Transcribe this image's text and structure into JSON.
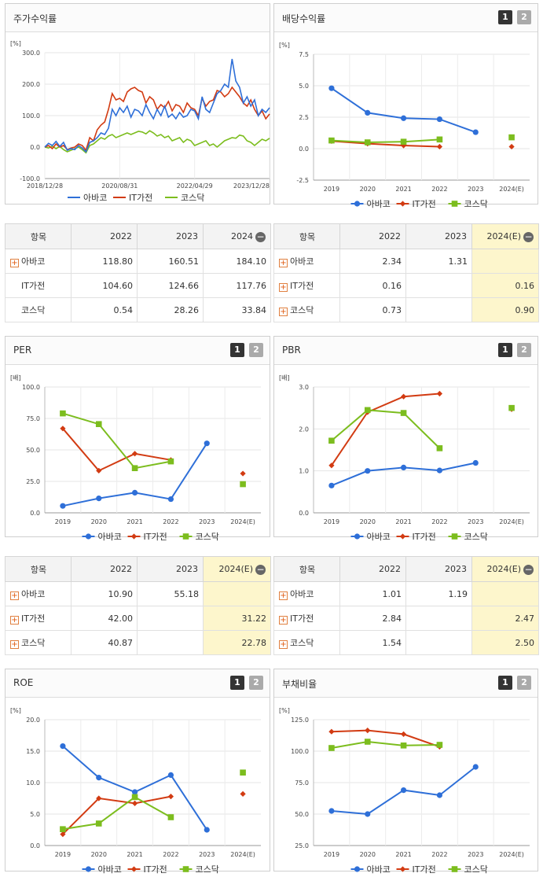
{
  "colors": {
    "abaco": "#2e6fd8",
    "it": "#d23b12",
    "kosdaq": "#7cbd1e"
  },
  "series_names": [
    "아바코",
    "IT가전",
    "코스닥"
  ],
  "icons": {
    "row_expand": "plus-icon",
    "collapse": "minus-icon"
  },
  "tabs": [
    "1",
    "2"
  ],
  "panels": {
    "stock": {
      "title": "주가수익률",
      "unit": "[%]"
    },
    "div": {
      "title": "배당수익률",
      "unit": "[%]"
    },
    "per": {
      "title": "PER",
      "unit": "[배]"
    },
    "pbr": {
      "title": "PBR",
      "unit": "[배]"
    },
    "roe": {
      "title": "ROE",
      "unit": "[%]"
    },
    "debt": {
      "title": "부채비율",
      "unit": "[%]"
    }
  },
  "tables": {
    "stock": {
      "headers": [
        "항목",
        "2022",
        "2023",
        "2024"
      ],
      "rows": [
        {
          "label": "아바코",
          "values": [
            "118.80",
            "160.51",
            "184.10"
          ]
        },
        {
          "label": "IT가전",
          "values": [
            "104.60",
            "124.66",
            "117.76"
          ]
        },
        {
          "label": "코스닥",
          "values": [
            "0.54",
            "28.26",
            "33.84"
          ]
        }
      ]
    },
    "div": {
      "headers": [
        "항목",
        "2022",
        "2023",
        "2024(E)"
      ],
      "rows": [
        {
          "label": "아바코",
          "values": [
            "2.34",
            "1.31",
            ""
          ]
        },
        {
          "label": "IT가전",
          "values": [
            "0.16",
            "",
            "0.16"
          ]
        },
        {
          "label": "코스닥",
          "values": [
            "0.73",
            "",
            "0.90"
          ]
        }
      ]
    },
    "per": {
      "headers": [
        "항목",
        "2022",
        "2023",
        "2024(E)"
      ],
      "rows": [
        {
          "label": "아바코",
          "values": [
            "10.90",
            "55.18",
            ""
          ]
        },
        {
          "label": "IT가전",
          "values": [
            "42.00",
            "",
            "31.22"
          ]
        },
        {
          "label": "코스닥",
          "values": [
            "40.87",
            "",
            "22.78"
          ]
        }
      ]
    },
    "pbr": {
      "headers": [
        "항목",
        "2022",
        "2023",
        "2024(E)"
      ],
      "rows": [
        {
          "label": "아바코",
          "values": [
            "1.01",
            "1.19",
            ""
          ]
        },
        {
          "label": "IT가전",
          "values": [
            "2.84",
            "",
            "2.47"
          ]
        },
        {
          "label": "코스닥",
          "values": [
            "1.54",
            "",
            "2.50"
          ]
        }
      ]
    }
  },
  "chart_data": [
    {
      "id": "stock",
      "type": "line",
      "title": "주가수익률",
      "ylabel": "[%]",
      "ylim": [
        -100,
        300
      ],
      "yticks": [
        "300.0",
        "200.0",
        "100.0",
        "0.0",
        "-100.0"
      ],
      "yticks_values": [
        300,
        200,
        100,
        0,
        -100
      ],
      "xticks": [
        "2018/12/28",
        "2020/08/31",
        "2022/04/29",
        "2023/12/28"
      ],
      "xlim": [
        0,
        60
      ],
      "xticks_values": [
        0,
        20,
        40,
        60
      ],
      "series": [
        {
          "name": "아바코",
          "x": [
            0,
            1,
            2,
            3,
            4,
            5,
            6,
            7,
            8,
            9,
            10,
            11,
            12,
            13,
            14,
            15,
            16,
            17,
            18,
            19,
            20,
            21,
            22,
            23,
            24,
            25,
            26,
            27,
            28,
            29,
            30,
            31,
            32,
            33,
            34,
            35,
            36,
            37,
            38,
            39,
            40,
            41,
            42,
            43,
            44,
            45,
            46,
            47,
            48,
            49,
            50,
            51,
            52,
            53,
            54,
            55,
            56,
            57,
            58,
            59,
            60
          ],
          "y": [
            0,
            12,
            5,
            18,
            2,
            15,
            -10,
            -5,
            -8,
            5,
            -3,
            -15,
            15,
            20,
            30,
            45,
            40,
            60,
            120,
            100,
            125,
            110,
            130,
            95,
            120,
            115,
            100,
            135,
            110,
            90,
            120,
            100,
            130,
            95,
            105,
            90,
            110,
            95,
            100,
            120,
            115,
            90,
            160,
            120,
            110,
            140,
            170,
            180,
            200,
            190,
            280,
            210,
            190,
            140,
            160,
            130,
            150,
            100,
            120,
            110,
            125
          ]
        },
        {
          "name": "IT가전",
          "x": [
            0,
            1,
            2,
            3,
            4,
            5,
            6,
            7,
            8,
            9,
            10,
            11,
            12,
            13,
            14,
            15,
            16,
            17,
            18,
            19,
            20,
            21,
            22,
            23,
            24,
            25,
            26,
            27,
            28,
            29,
            30,
            31,
            32,
            33,
            34,
            35,
            36,
            37,
            38,
            39,
            40,
            41,
            42,
            43,
            44,
            45,
            46,
            47,
            48,
            49,
            50,
            51,
            52,
            53,
            54,
            55,
            56,
            57,
            58,
            59,
            60
          ],
          "y": [
            0,
            5,
            -5,
            10,
            0,
            5,
            -8,
            -3,
            0,
            10,
            5,
            -10,
            30,
            20,
            55,
            70,
            80,
            120,
            170,
            150,
            155,
            145,
            175,
            185,
            190,
            180,
            175,
            140,
            160,
            150,
            120,
            135,
            125,
            145,
            115,
            135,
            130,
            110,
            140,
            125,
            120,
            100,
            155,
            130,
            145,
            150,
            180,
            175,
            160,
            170,
            190,
            175,
            160,
            140,
            130,
            150,
            120,
            100,
            115,
            90,
            105
          ]
        },
        {
          "name": "코스닥",
          "x": [
            0,
            1,
            2,
            3,
            4,
            5,
            6,
            7,
            8,
            9,
            10,
            11,
            12,
            13,
            14,
            15,
            16,
            17,
            18,
            19,
            20,
            21,
            22,
            23,
            24,
            25,
            26,
            27,
            28,
            29,
            30,
            31,
            32,
            33,
            34,
            35,
            36,
            37,
            38,
            39,
            40,
            41,
            42,
            43,
            44,
            45,
            46,
            47,
            48,
            49,
            50,
            51,
            52,
            53,
            54,
            55,
            56,
            57,
            58,
            59,
            60
          ],
          "y": [
            0,
            -3,
            3,
            -5,
            2,
            -8,
            -15,
            -10,
            -5,
            0,
            -8,
            -18,
            5,
            10,
            20,
            30,
            25,
            35,
            40,
            30,
            35,
            40,
            45,
            40,
            45,
            50,
            48,
            42,
            52,
            45,
            35,
            40,
            30,
            35,
            20,
            25,
            30,
            15,
            25,
            20,
            5,
            10,
            15,
            20,
            5,
            10,
            0,
            10,
            20,
            25,
            30,
            28,
            38,
            35,
            20,
            15,
            5,
            15,
            25,
            20,
            28
          ]
        }
      ]
    },
    {
      "id": "div",
      "type": "line",
      "ylim": [
        -2.5,
        7.5
      ],
      "yticks": [
        "7.5",
        "5.0",
        "2.5",
        "0.0",
        "-2.5"
      ],
      "yticks_values": [
        7.5,
        5.0,
        2.5,
        0.0,
        -2.5
      ],
      "categories": [
        "2019",
        "2020",
        "2021",
        "2022",
        "2023",
        "2024(E)"
      ],
      "series": [
        {
          "name": "아바코",
          "values": [
            4.8,
            2.85,
            2.42,
            2.34,
            1.31,
            null
          ]
        },
        {
          "name": "IT가전",
          "values": [
            0.6,
            0.4,
            0.25,
            0.16,
            null,
            0.16
          ]
        },
        {
          "name": "코스닥",
          "values": [
            0.65,
            0.5,
            0.55,
            0.73,
            null,
            0.9
          ]
        }
      ]
    },
    {
      "id": "per",
      "type": "line",
      "ylim": [
        0,
        100
      ],
      "yticks": [
        "100.0",
        "75.0",
        "50.0",
        "25.0",
        "0.0"
      ],
      "yticks_values": [
        100,
        75,
        50,
        25,
        0
      ],
      "categories": [
        "2019",
        "2020",
        "2021",
        "2022",
        "2023",
        "2024(E)"
      ],
      "series": [
        {
          "name": "아바코",
          "values": [
            5.5,
            11.5,
            16.0,
            10.9,
            55.18,
            null
          ]
        },
        {
          "name": "IT가전",
          "values": [
            67.0,
            33.5,
            47.0,
            42.0,
            null,
            31.22
          ]
        },
        {
          "name": "코스닥",
          "values": [
            79.0,
            70.5,
            35.5,
            40.87,
            null,
            22.78
          ]
        }
      ]
    },
    {
      "id": "pbr",
      "type": "line",
      "ylim": [
        0,
        3.0
      ],
      "yticks": [
        "3.0",
        "2.0",
        "1.0",
        "0.0"
      ],
      "yticks_values": [
        3.0,
        2.0,
        1.0,
        0.0
      ],
      "categories": [
        "2019",
        "2020",
        "2021",
        "2022",
        "2023",
        "2024(E)"
      ],
      "series": [
        {
          "name": "아바코",
          "values": [
            0.65,
            1.0,
            1.08,
            1.01,
            1.19,
            null
          ]
        },
        {
          "name": "IT가전",
          "values": [
            1.13,
            2.4,
            2.77,
            2.84,
            null,
            2.47
          ]
        },
        {
          "name": "코스닥",
          "values": [
            1.72,
            2.45,
            2.38,
            1.54,
            null,
            2.5
          ]
        }
      ]
    },
    {
      "id": "roe",
      "type": "line",
      "ylim": [
        0,
        20
      ],
      "yticks": [
        "20.0",
        "15.0",
        "10.0",
        "5.0",
        "0.0"
      ],
      "yticks_values": [
        20,
        15,
        10,
        5,
        0
      ],
      "categories": [
        "2019",
        "2020",
        "2021",
        "2022",
        "2023",
        "2024(E)"
      ],
      "series": [
        {
          "name": "아바코",
          "values": [
            15.8,
            10.8,
            8.5,
            11.2,
            2.5,
            null
          ]
        },
        {
          "name": "IT가전",
          "values": [
            1.8,
            7.5,
            6.7,
            7.8,
            null,
            8.2
          ]
        },
        {
          "name": "코스닥",
          "values": [
            2.6,
            3.5,
            7.7,
            4.5,
            null,
            11.6
          ]
        }
      ]
    },
    {
      "id": "debt",
      "type": "line",
      "ylim": [
        25,
        125
      ],
      "yticks": [
        "125.0",
        "100.0",
        "75.0",
        "50.0",
        "25.0"
      ],
      "yticks_values": [
        125,
        100,
        75,
        50,
        25
      ],
      "categories": [
        "2019",
        "2020",
        "2021",
        "2022",
        "2023",
        "2024(E)"
      ],
      "series": [
        {
          "name": "아바코",
          "values": [
            52.5,
            50.0,
            69.0,
            65.0,
            87.5,
            null
          ]
        },
        {
          "name": "IT가전",
          "values": [
            115.5,
            116.5,
            113.5,
            103.5,
            null,
            null
          ]
        },
        {
          "name": "코스닥",
          "values": [
            102.5,
            107.5,
            104.5,
            105.0,
            null,
            null
          ]
        }
      ]
    }
  ]
}
